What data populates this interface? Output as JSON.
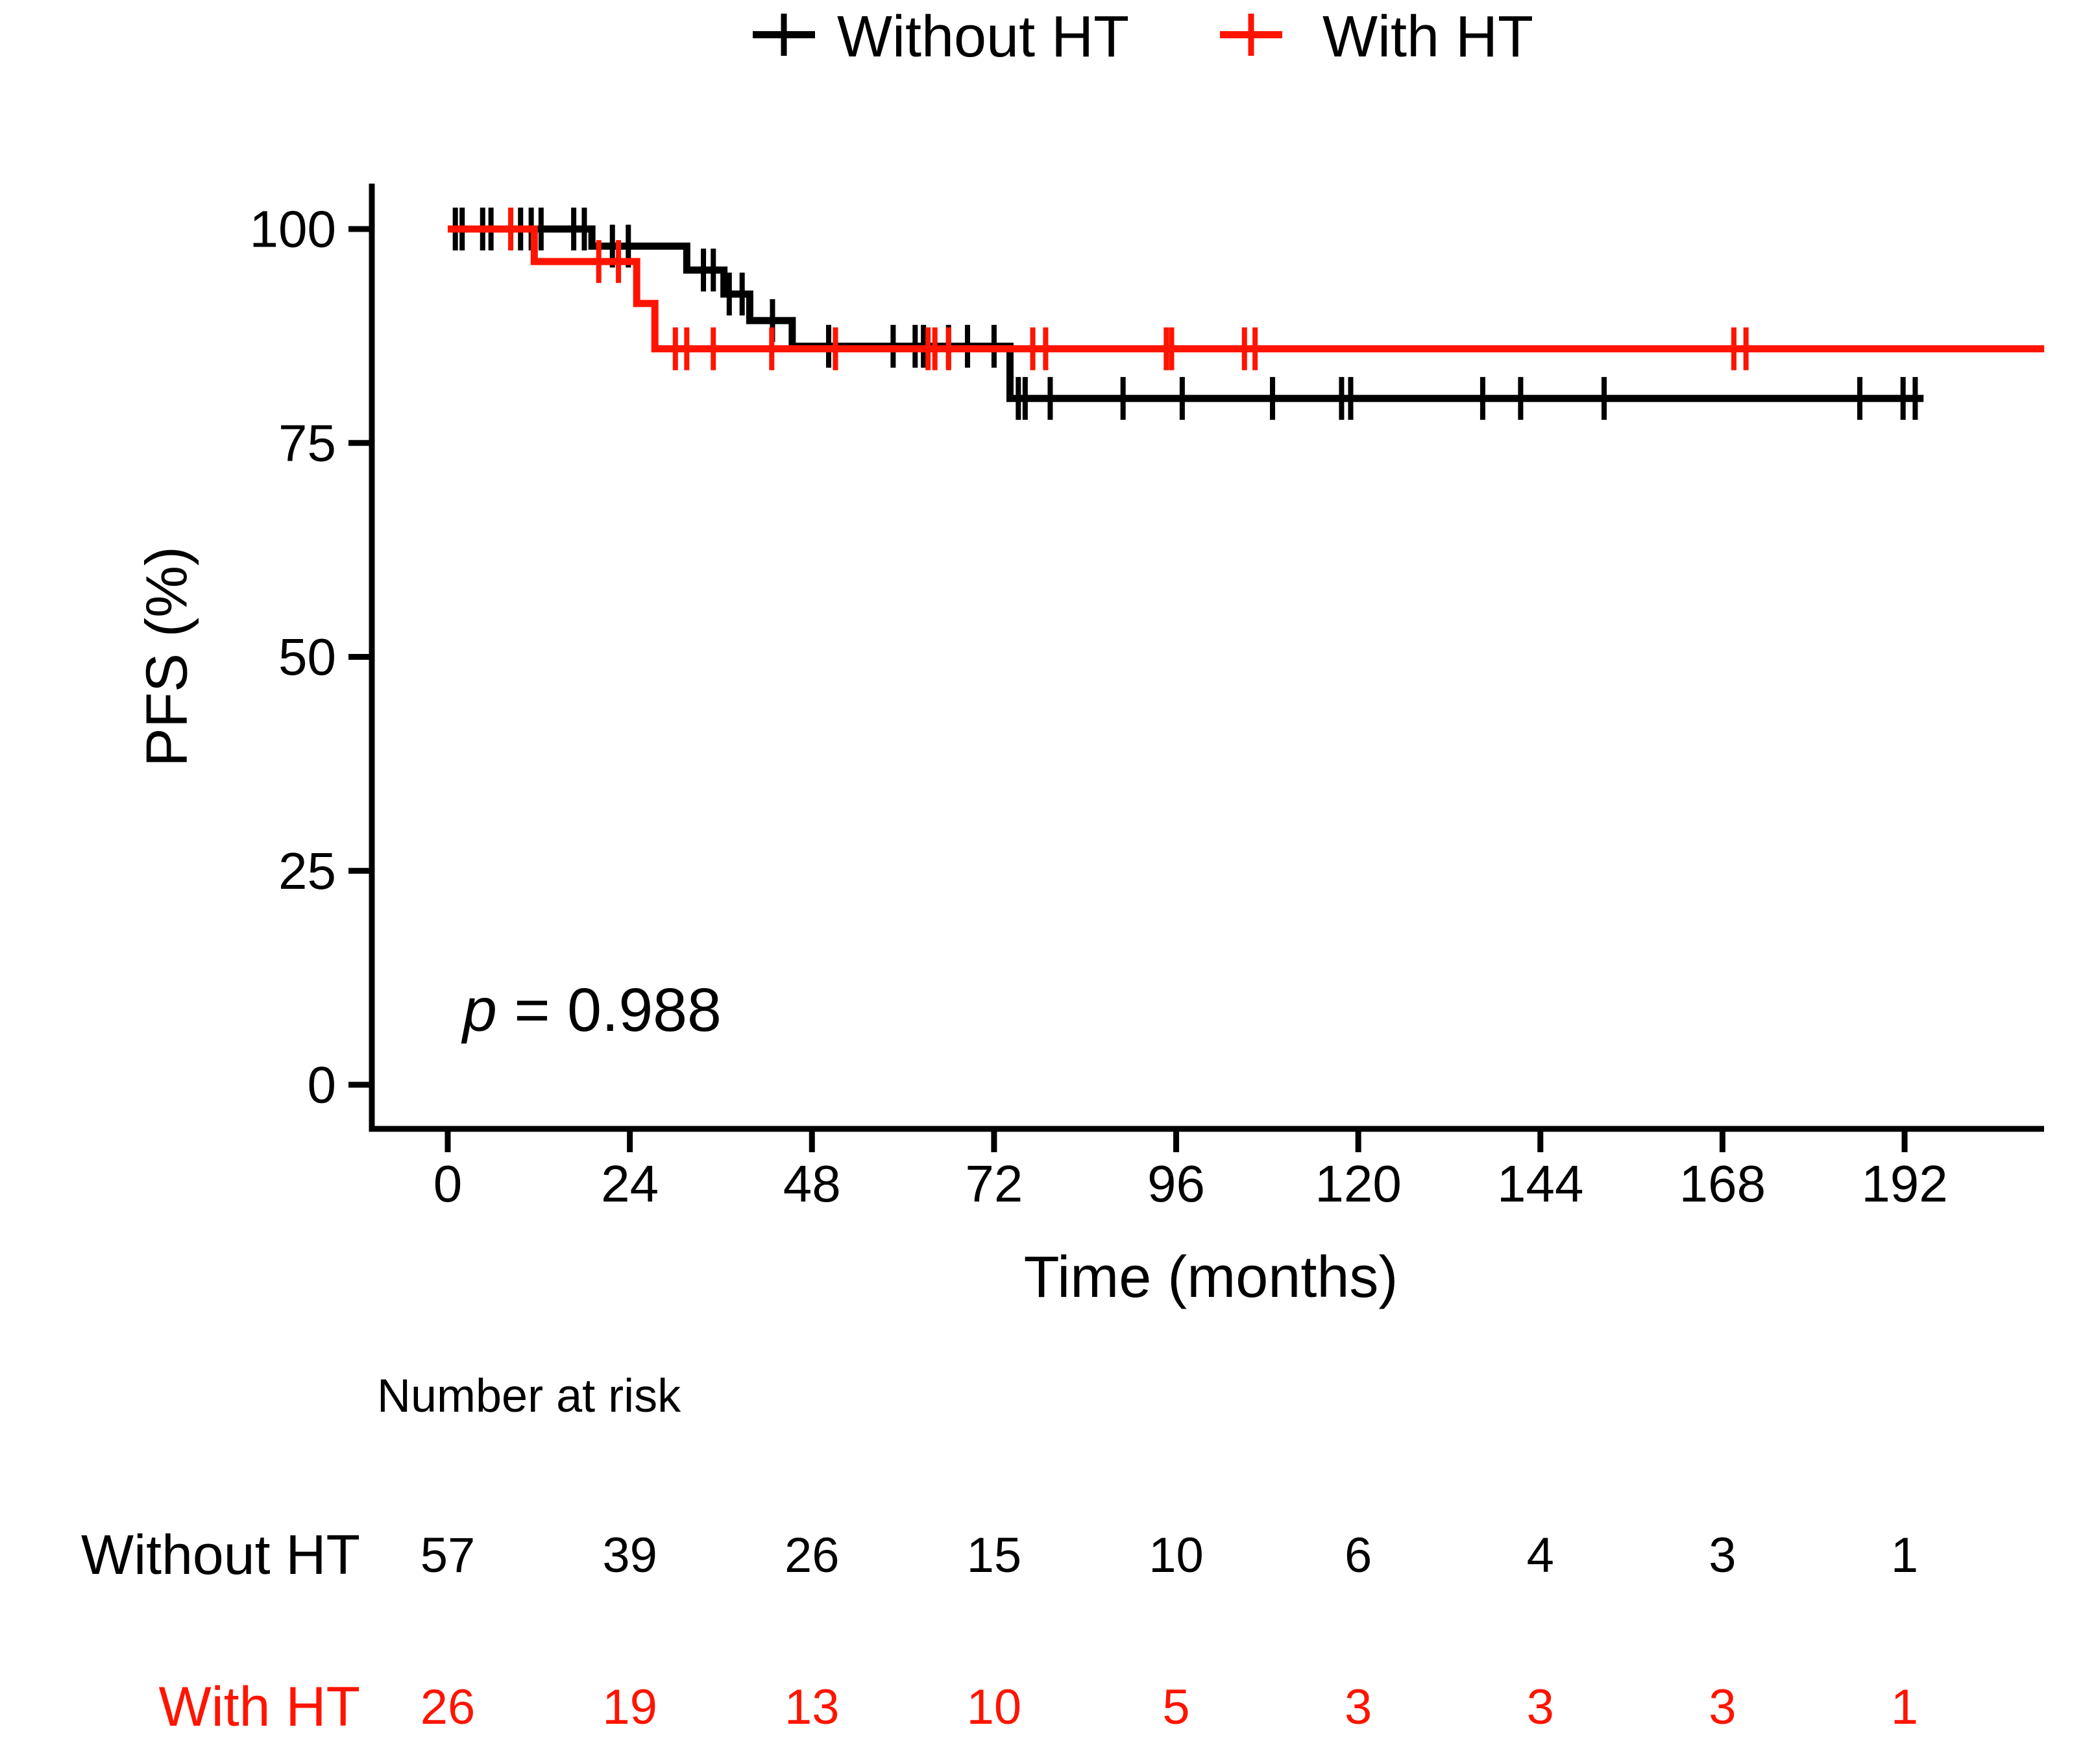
{
  "page": {
    "background": "#ffffff"
  },
  "legend": {
    "position": "top",
    "items": [
      {
        "label": "Without HT",
        "color": "#000000"
      },
      {
        "label": "With HT",
        "color": "#ff1400"
      }
    ]
  },
  "annotation": {
    "variable": "p",
    "rest": " = 0.988"
  },
  "chart_data": {
    "type": "line",
    "subtype": "kaplan_meier_step",
    "title": "",
    "xlabel": "Time (months)",
    "ylabel": "PFS (%)",
    "xlim": [
      0,
      210.6
    ],
    "ylim": [
      0,
      105
    ],
    "x_ticks": [
      0,
      24,
      48,
      72,
      96,
      120,
      144,
      168,
      192
    ],
    "y_ticks": [
      0,
      25,
      50,
      75,
      100
    ],
    "grid": false,
    "legend_position": "top",
    "p_value_text": "p = 0.988",
    "series": [
      {
        "name": "Without HT",
        "color": "#000000",
        "steps": [
          [
            0,
            100
          ],
          [
            19,
            98
          ],
          [
            31.5,
            95.2
          ],
          [
            36.4,
            92.4
          ],
          [
            39.8,
            89.3
          ],
          [
            45.4,
            86.3
          ],
          [
            74.1,
            80.2
          ]
        ],
        "end_time": 194.5,
        "censor_marks": [
          [
            1,
            100
          ],
          [
            1.9,
            100
          ],
          [
            4.6,
            100
          ],
          [
            5.7,
            100
          ],
          [
            9.6,
            100
          ],
          [
            11,
            100
          ],
          [
            12.3,
            100
          ],
          [
            16.6,
            100
          ],
          [
            18,
            100
          ],
          [
            21.7,
            98
          ],
          [
            23.8,
            98
          ],
          [
            33.7,
            95.2
          ],
          [
            35,
            95.2
          ],
          [
            37.1,
            92.4
          ],
          [
            38.8,
            92.4
          ],
          [
            42.8,
            89.3
          ],
          [
            50.2,
            86.3
          ],
          [
            58.7,
            86.3
          ],
          [
            61.6,
            86.3
          ],
          [
            62.7,
            86.3
          ],
          [
            66,
            86.3
          ],
          [
            68.5,
            86.3
          ],
          [
            72,
            86.3
          ],
          [
            75.2,
            80.2
          ],
          [
            76.1,
            80.2
          ],
          [
            79.4,
            80.2
          ],
          [
            89,
            80.2
          ],
          [
            96.8,
            80.2
          ],
          [
            108.7,
            80.2
          ],
          [
            117.8,
            80.2
          ],
          [
            119,
            80.2
          ],
          [
            136.4,
            80.2
          ],
          [
            141.4,
            80.2
          ],
          [
            152.4,
            80.2
          ],
          [
            186.1,
            80.2
          ],
          [
            191.8,
            80.2
          ],
          [
            193.4,
            80.2
          ]
        ]
      },
      {
        "name": "With HT",
        "color": "#ff1400",
        "steps": [
          [
            0,
            100
          ],
          [
            11.4,
            96.2
          ],
          [
            24.9,
            91.3
          ],
          [
            27.3,
            86
          ]
        ],
        "end_time": 210.4,
        "censor_marks": [
          [
            8.3,
            100
          ],
          [
            19.9,
            96.2
          ],
          [
            22.5,
            96.2
          ],
          [
            30,
            86
          ],
          [
            31.5,
            86
          ],
          [
            35,
            86
          ],
          [
            42.7,
            86
          ],
          [
            51.1,
            86
          ],
          [
            63.3,
            86
          ],
          [
            64.2,
            86
          ],
          [
            66,
            86
          ],
          [
            77.1,
            86
          ],
          [
            78.8,
            86
          ],
          [
            94.7,
            86
          ],
          [
            95.4,
            86
          ],
          [
            105,
            86
          ],
          [
            106.4,
            86
          ],
          [
            169.5,
            86
          ],
          [
            171.1,
            86
          ]
        ]
      }
    ]
  },
  "risk_table": {
    "header": "Number at risk",
    "times": [
      0,
      24,
      48,
      72,
      96,
      120,
      144,
      168,
      192
    ],
    "rows": [
      {
        "label": "Without HT",
        "color": "#000000",
        "values": [
          "57",
          "39",
          "26",
          "15",
          "10",
          "6",
          "4",
          "3",
          "1"
        ]
      },
      {
        "label": "With HT",
        "color": "#ff1400",
        "values": [
          "26",
          "19",
          "13",
          "10",
          "5",
          "3",
          "3",
          "3",
          "1"
        ]
      }
    ]
  }
}
